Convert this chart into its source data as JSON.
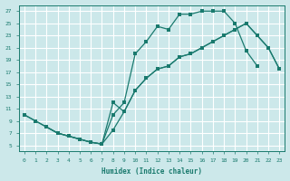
{
  "xlabel": "Humidex (Indice chaleur)",
  "bg_color": "#cce8ea",
  "line_color": "#1a7a6e",
  "grid_color": "#ffffff",
  "xlim": [
    -0.5,
    23.5
  ],
  "ylim": [
    4.0,
    28.0
  ],
  "xticks": [
    0,
    1,
    2,
    3,
    4,
    5,
    6,
    7,
    8,
    9,
    10,
    11,
    12,
    13,
    14,
    15,
    16,
    17,
    18,
    19,
    20,
    21,
    22,
    23
  ],
  "yticks": [
    5,
    7,
    9,
    11,
    13,
    15,
    17,
    19,
    21,
    23,
    25,
    27
  ],
  "line1_x": [
    0,
    1,
    2,
    3,
    4,
    5,
    6,
    7,
    8,
    9,
    10,
    11,
    12,
    13,
    14,
    15,
    16,
    17,
    18,
    19,
    20,
    21
  ],
  "line1_y": [
    10,
    9,
    8,
    7,
    6.5,
    6,
    5.5,
    5.2,
    10,
    12,
    20,
    22,
    24.5,
    24,
    26.5,
    26.5,
    27,
    27,
    27,
    25,
    20.5,
    18
  ],
  "line2_x": [
    0,
    1,
    2,
    3,
    4,
    5,
    6,
    7,
    8,
    9,
    10,
    11,
    12,
    13,
    14,
    15,
    16,
    17,
    18,
    19,
    20,
    21,
    22,
    23
  ],
  "line2_y": [
    10,
    9,
    8,
    7,
    6.5,
    6,
    5.5,
    5.2,
    7.5,
    10.5,
    14,
    16,
    17.5,
    18,
    19.5,
    20,
    21,
    22,
    23,
    24,
    25,
    23,
    21,
    17.5
  ],
  "line3_x": [
    2,
    3,
    4,
    5,
    6,
    7,
    8,
    9,
    10,
    11,
    12,
    13,
    14,
    15,
    16,
    17,
    18,
    19,
    20,
    21,
    22,
    23
  ],
  "line3_y": [
    8,
    7,
    6.5,
    6,
    5.5,
    5.2,
    12,
    10.5,
    14,
    16,
    17.5,
    18,
    19.5,
    20,
    21,
    22,
    23,
    24,
    25,
    23,
    21,
    17.5
  ]
}
